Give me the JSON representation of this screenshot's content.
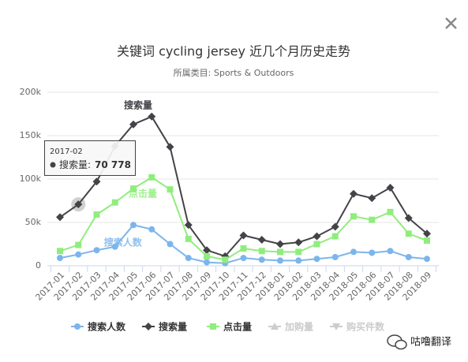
{
  "chart_data": {
    "type": "line",
    "title": "关键词 cycling jersey 近几个月历史走势",
    "subtitle": "所属类目: Sports & Outdoors",
    "categories": [
      "2017-01",
      "2017-02",
      "2017-03",
      "2017-04",
      "2017-05",
      "2017-06",
      "2017-07",
      "2017-08",
      "2017-09",
      "2017-10",
      "2017-11",
      "2017-12",
      "2018-01",
      "2018-02",
      "2018-03",
      "2018-04",
      "2018-05",
      "2018-06",
      "2018-07",
      "2018-08",
      "2018-09"
    ],
    "series": [
      {
        "name": "搜索人数",
        "color": "#7cb5ec",
        "marker": "circle",
        "values": [
          9000,
          13000,
          18000,
          22000,
          47000,
          42000,
          25000,
          9000,
          4000,
          3000,
          9000,
          7000,
          6000,
          6000,
          8000,
          10000,
          16000,
          15000,
          17000,
          10000,
          8000
        ]
      },
      {
        "name": "搜索量",
        "color": "#434348",
        "marker": "diamond",
        "values": [
          56000,
          70778,
          97000,
          138000,
          163000,
          172000,
          137000,
          47000,
          18000,
          11000,
          35000,
          30000,
          25000,
          27000,
          34000,
          45000,
          83000,
          78000,
          90000,
          55000,
          37000
        ]
      },
      {
        "name": "点击量",
        "color": "#90ed7d",
        "marker": "square",
        "values": [
          17000,
          24000,
          59000,
          73000,
          89000,
          102000,
          88000,
          31000,
          11000,
          7000,
          20000,
          17000,
          16000,
          16000,
          25000,
          34000,
          57000,
          53000,
          62000,
          37000,
          29000
        ]
      }
    ],
    "inactive_series": [
      {
        "name": "加购量",
        "marker": "triangle"
      },
      {
        "name": "购买件数",
        "marker": "triangle-down"
      }
    ],
    "inactive_color": "#cccccc",
    "ylim": [
      0,
      200000
    ],
    "yticks": [
      0,
      {
        "value": 50000,
        "label": "50k"
      },
      {
        "value": 100000,
        "label": "100k"
      },
      {
        "value": 150000,
        "label": "150k"
      },
      {
        "value": 200000,
        "label": "200k"
      }
    ],
    "grid": true,
    "annotations": [
      {
        "text": "搜索量",
        "series": 1
      },
      {
        "text": "点击量",
        "series": 2
      },
      {
        "text": "搜索人数",
        "series": 0
      }
    ],
    "tooltip": {
      "category": "2017-02",
      "series_label": "搜索量:",
      "value": 70778,
      "value_label": "70 778",
      "series": 1,
      "index": 1
    },
    "watermark": "咕噜翻译"
  }
}
